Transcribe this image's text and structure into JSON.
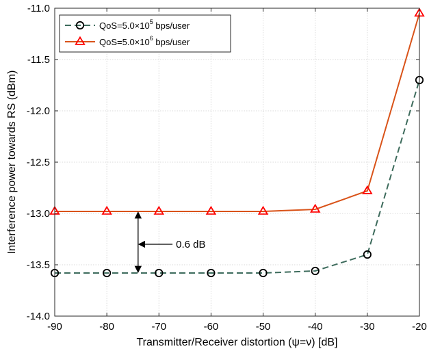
{
  "chart_data": {
    "type": "line",
    "title": "",
    "xlabel": "Transmitter/Receiver distortion (ψ=ν) [dB]",
    "ylabel": "Interference power towards RS (dBm)",
    "xlim": [
      -90,
      -20
    ],
    "ylim": [
      -14.0,
      -11.0
    ],
    "x_ticks": [
      "-90",
      "-80",
      "-70",
      "-60",
      "-50",
      "-40",
      "-30",
      "-20"
    ],
    "y_ticks": [
      "-11.0",
      "-11.5",
      "-12.0",
      "-12.5",
      "-13.0",
      "-13.5",
      "-14.0"
    ],
    "grid": true,
    "legend_position": "top-left",
    "x": [
      -90,
      -80,
      -70,
      -60,
      -50,
      -40,
      -30,
      -20
    ],
    "series": [
      {
        "name": "QoS=5.0×10^5 bps/user",
        "legend_main": "QoS=5.0×10",
        "legend_exp": "5",
        "legend_tail": " bps/user",
        "color": "#3d6b5c",
        "line_style": "dashed",
        "marker": "circle",
        "marker_color": "#000000",
        "values": [
          -13.58,
          -13.58,
          -13.58,
          -13.58,
          -13.58,
          -13.56,
          -13.4,
          -11.7
        ]
      },
      {
        "name": "QoS=5.0×10^6 bps/user",
        "legend_main": "QoS=5.0×10",
        "legend_exp": "6",
        "legend_tail": " bps/user",
        "color": "#d95319",
        "line_style": "solid",
        "marker": "triangle",
        "marker_color": "#ff0000",
        "values": [
          -12.98,
          -12.98,
          -12.98,
          -12.98,
          -12.98,
          -12.96,
          -12.78,
          -11.05
        ]
      }
    ],
    "annotation": {
      "text": "0.6 dB",
      "x": -74,
      "y_top": -12.98,
      "y_bottom": -13.58,
      "text_at": [
        -67,
        -13.3
      ],
      "arrow_tip": [
        -74,
        -13.3
      ]
    }
  }
}
